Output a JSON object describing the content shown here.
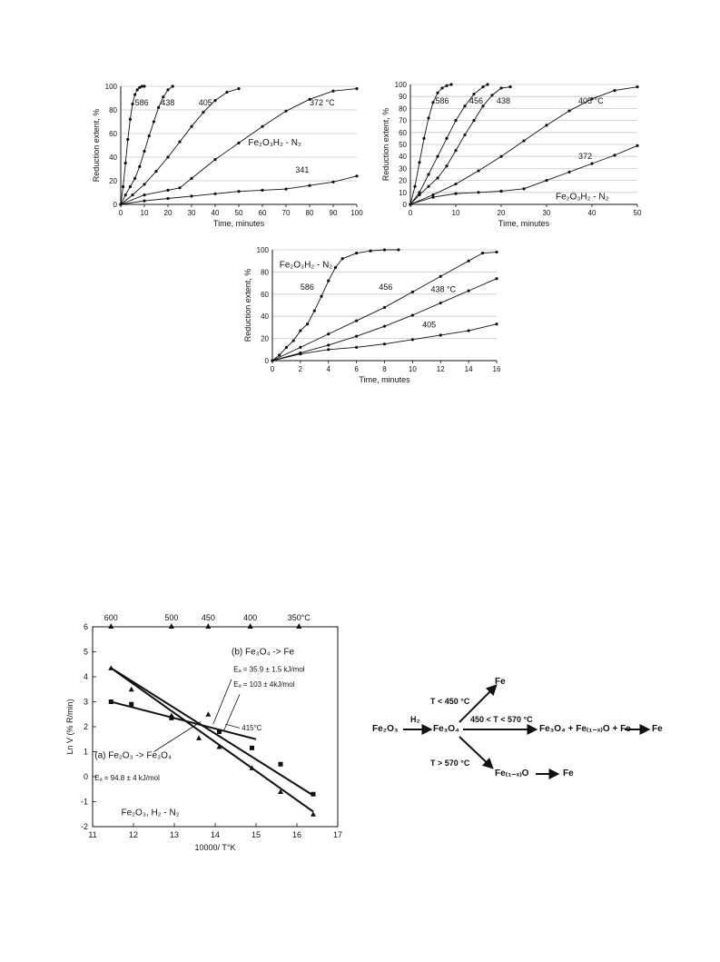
{
  "chart_data": [
    {
      "id": "c1",
      "type": "line",
      "xlabel": "Time, minutes",
      "ylabel": "Reduction extent, %",
      "xlim": [
        0,
        100
      ],
      "ylim": [
        0,
        100
      ],
      "xticks": [
        0,
        10,
        20,
        30,
        40,
        50,
        60,
        70,
        80,
        90,
        100
      ],
      "yticks": [
        0,
        20,
        40,
        60,
        80,
        100
      ],
      "grid": "horizontal",
      "system_label": "Fe₂O₃H₂ - N₂",
      "series": [
        {
          "name": "586",
          "x": [
            0,
            1,
            2,
            3,
            4,
            5,
            6,
            7,
            8,
            9,
            10
          ],
          "y": [
            0,
            15,
            35,
            55,
            72,
            85,
            93,
            97,
            99,
            100,
            100
          ]
        },
        {
          "name": "438",
          "x": [
            0,
            2,
            4,
            6,
            8,
            10,
            12,
            14,
            16,
            18,
            20,
            22
          ],
          "y": [
            0,
            8,
            15,
            22,
            32,
            45,
            58,
            70,
            82,
            91,
            97,
            100
          ]
        },
        {
          "name": "405",
          "x": [
            0,
            5,
            10,
            15,
            20,
            25,
            30,
            35,
            40,
            45,
            50
          ],
          "y": [
            0,
            8,
            17,
            28,
            40,
            53,
            66,
            78,
            88,
            95,
            98
          ]
        },
        {
          "name": "372 °C",
          "x": [
            0,
            10,
            20,
            25,
            30,
            40,
            50,
            60,
            70,
            80,
            90,
            100
          ],
          "y": [
            0,
            8,
            12,
            14,
            22,
            38,
            52,
            66,
            79,
            89,
            96,
            98
          ]
        },
        {
          "name": "341",
          "x": [
            0,
            10,
            20,
            30,
            40,
            50,
            60,
            70,
            80,
            90,
            100
          ],
          "y": [
            0,
            3,
            5,
            7,
            9,
            11,
            12,
            13,
            16,
            19,
            24
          ]
        }
      ]
    },
    {
      "id": "c2",
      "type": "line",
      "xlabel": "Time, minutes",
      "ylabel": "Reduction extent, %",
      "xlim": [
        0,
        50
      ],
      "ylim": [
        0,
        100
      ],
      "xticks": [
        0,
        10,
        20,
        30,
        40,
        50
      ],
      "yticks": [
        0,
        10,
        20,
        30,
        40,
        50,
        60,
        70,
        80,
        90,
        100
      ],
      "grid": "horizontal",
      "system_label": "Fe₂O₃H₂ - N₂",
      "series": [
        {
          "name": "586",
          "x": [
            0,
            1,
            2,
            3,
            4,
            5,
            6,
            7,
            8,
            9
          ],
          "y": [
            0,
            15,
            35,
            55,
            72,
            85,
            93,
            97,
            99,
            100
          ]
        },
        {
          "name": "456",
          "x": [
            0,
            2,
            4,
            6,
            8,
            10,
            12,
            14,
            16,
            17
          ],
          "y": [
            0,
            10,
            25,
            40,
            55,
            70,
            82,
            92,
            98,
            100
          ]
        },
        {
          "name": "438",
          "x": [
            0,
            2,
            4,
            6,
            8,
            10,
            12,
            14,
            16,
            18,
            20,
            22
          ],
          "y": [
            0,
            8,
            15,
            22,
            32,
            45,
            58,
            70,
            82,
            91,
            97,
            98
          ]
        },
        {
          "name": "405 °C",
          "x": [
            0,
            5,
            10,
            15,
            20,
            25,
            30,
            35,
            40,
            45,
            50
          ],
          "y": [
            0,
            8,
            17,
            28,
            40,
            53,
            66,
            78,
            88,
            95,
            98
          ]
        },
        {
          "name": "372",
          "x": [
            0,
            5,
            10,
            15,
            20,
            25,
            30,
            35,
            40,
            45,
            50
          ],
          "y": [
            0,
            6,
            9,
            10,
            11,
            13,
            20,
            27,
            34,
            41,
            49
          ]
        }
      ]
    },
    {
      "id": "c3",
      "type": "line",
      "xlabel": "Time, minutes",
      "ylabel": "Reduction extent, %",
      "xlim": [
        0,
        16
      ],
      "ylim": [
        0,
        100
      ],
      "xticks": [
        0,
        2,
        4,
        6,
        8,
        10,
        12,
        14,
        16
      ],
      "yticks": [
        0,
        20,
        40,
        60,
        80,
        100
      ],
      "grid": "horizontal",
      "system_label": "Fe₂O₃H₂ - N₂",
      "series": [
        {
          "name": "586",
          "x": [
            0,
            0.5,
            1,
            1.5,
            2,
            2.5,
            3,
            3.5,
            4,
            4.5,
            5,
            6,
            7,
            8,
            9
          ],
          "y": [
            0,
            5,
            12,
            18,
            27,
            33,
            45,
            58,
            72,
            84,
            92,
            97,
            99,
            100,
            100
          ]
        },
        {
          "name": "456",
          "x": [
            0,
            2,
            4,
            6,
            8,
            10,
            12,
            14,
            15,
            16
          ],
          "y": [
            0,
            12,
            24,
            36,
            48,
            62,
            76,
            90,
            97,
            98
          ]
        },
        {
          "name": "438 °C",
          "x": [
            0,
            2,
            4,
            6,
            8,
            10,
            12,
            14,
            16
          ],
          "y": [
            0,
            7,
            14,
            22,
            31,
            41,
            52,
            63,
            74
          ]
        },
        {
          "name": "405",
          "x": [
            0,
            2,
            4,
            6,
            8,
            10,
            12,
            14,
            16
          ],
          "y": [
            0,
            6,
            10,
            12,
            15,
            19,
            23,
            27,
            33
          ]
        }
      ]
    },
    {
      "id": "c4",
      "type": "scatter",
      "xlabel": "10000/ T°K",
      "ylabel": "Ln V (% R/min)",
      "xlim": [
        11,
        17
      ],
      "ylim": [
        -2,
        6
      ],
      "xticks": [
        11,
        12,
        13,
        14,
        15,
        16,
        17
      ],
      "yticks": [
        -2,
        -1,
        0,
        1,
        2,
        3,
        4,
        5,
        6
      ],
      "top_axis_ticks": [
        {
          "label": "600",
          "x": 11.45
        },
        {
          "label": "500",
          "x": 12.93
        },
        {
          "label": "450",
          "x": 13.83
        },
        {
          "label": "400",
          "x": 14.86
        },
        {
          "label": "350°C",
          "x": 16.05
        }
      ],
      "series": [
        {
          "name": "(b) Fe₃O₄ -> Fe",
          "marker": "square",
          "x": [
            11.45,
            11.95,
            12.93,
            14.1,
            14.9,
            15.6,
            16.4
          ],
          "y": [
            3.0,
            2.9,
            2.35,
            1.8,
            1.15,
            0.5,
            -0.7
          ]
        },
        {
          "name": "(a) Fe₂O₃ -> Fe₃O₄",
          "marker": "triangle",
          "x": [
            11.45,
            11.95,
            12.93,
            13.6,
            13.83,
            14.1,
            14.9,
            15.6,
            16.4
          ],
          "y": [
            4.35,
            3.5,
            2.45,
            1.55,
            2.5,
            1.2,
            0.35,
            -0.6,
            -1.5
          ]
        }
      ],
      "fit_lines": [
        {
          "name": "Ea_b",
          "x": [
            11.45,
            16.4
          ],
          "y": [
            4.35,
            -0.75
          ]
        },
        {
          "name": "Ea_a",
          "x": [
            11.45,
            16.4
          ],
          "y": [
            4.35,
            -1.4
          ]
        },
        {
          "name": "low_T",
          "x": [
            11.45,
            15.0
          ],
          "y": [
            3.0,
            1.5
          ]
        }
      ],
      "annotations": {
        "b_title": "(b) Fe₃O₄ -> Fe",
        "ea_1": "Eₐ = 35.9 ± 1.5 kJ/mol",
        "ea_2": "Eₐ = 103 ± 4kJ/mol",
        "break_temp": "415°C",
        "a_title": "(a) Fe₂O₃ -> Fe₃O₄",
        "ea_a": "Eₐ = 94.8 ± 4 kJ/mol",
        "system": "Fe₂O₃, H₂ - N₂"
      }
    }
  ],
  "scheme": {
    "fe2o3": "Fe₂O₃",
    "h2": "H₂",
    "fe3o4": "Fe₃O₄",
    "fe_top": "Fe",
    "cond_low": "T < 450 °C",
    "cond_mid": "450 < T  < 570 °C",
    "products_mid": "Fe₃O₄ + Fe₍₁₋ₓ₎O + Fe",
    "fe_mid_end": "Fe",
    "cond_high": "T > 570 °C",
    "fe1xo": "Fe₍₁₋ₓ₎O",
    "fe_bottom": "Fe"
  }
}
